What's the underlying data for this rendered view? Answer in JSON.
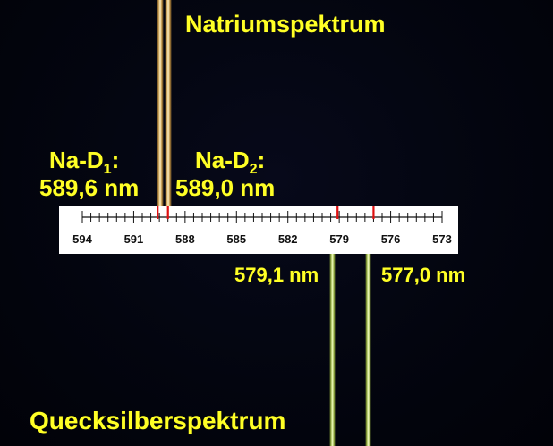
{
  "titles": {
    "sodium_spectrum": "Natriumspektrum",
    "mercury_spectrum": "Quecksilberspektrum"
  },
  "sodium_lines": {
    "d1_prefix": "Na-D",
    "d1_sub": "1",
    "d1_suffix": ":",
    "d1_value": "589,6 nm",
    "d2_prefix": "Na-D",
    "d2_sub": "2",
    "d2_suffix": ":",
    "d2_value": "589,0 nm"
  },
  "mercury_lines": {
    "line1_value": "579,1 nm",
    "line2_value": "577,0 nm"
  },
  "scale": {
    "tick_labels": [
      "594",
      "591",
      "588",
      "585",
      "582",
      "579",
      "576",
      "573"
    ],
    "minor_step_nm": 0.5,
    "range_nm": [
      594,
      573
    ],
    "marked_lines_nm": [
      589.6,
      589.0,
      579.1,
      577.0
    ],
    "marker_color": "#e01010"
  },
  "colors": {
    "label_text": "#ffff26",
    "sodium_beam": "#f4d27a",
    "mercury_beam": "#d9f07a",
    "background": "#02040d"
  }
}
